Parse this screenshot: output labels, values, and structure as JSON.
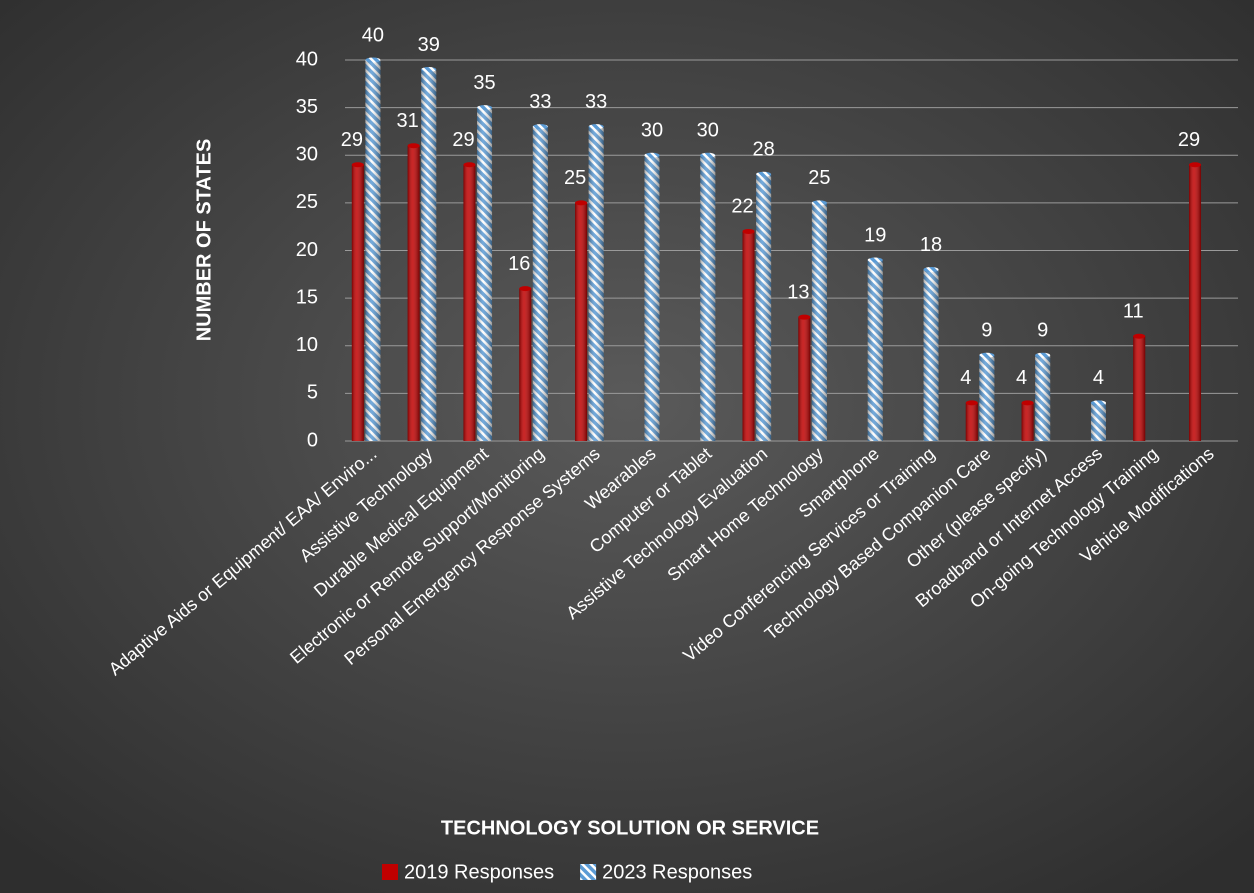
{
  "chart_data": {
    "type": "bar",
    "x_label": "TECHNOLOGY SOLUTION OR SERVICE",
    "y_label": "NUMBER OF STATES",
    "categories": [
      "Adaptive Aids or Equipment/ EAA/ Enviro...",
      "Assistive Technology",
      "Durable Medical Equipment",
      "Electronic or Remote Support/Monitoring",
      "Personal Emergency Response Systems",
      "Wearables",
      "Computer or Tablet",
      "Assistive Technology Evaluation",
      "Smart Home Technology",
      "Smartphone",
      "Video Conferencing Services or Training",
      "Technology Based Companion Care",
      "Other (please specify)",
      "Broadband or Internet Access",
      "On-going Technology Training",
      "Vehicle Modifications"
    ],
    "series": [
      {
        "name": "2019 Responses",
        "color": "#c00000",
        "values": [
          29,
          31,
          29,
          16,
          25,
          null,
          null,
          22,
          13,
          null,
          null,
          4,
          4,
          null,
          11,
          29
        ]
      },
      {
        "name": "2023 Responses",
        "color": "#5b9bd5",
        "values": [
          40,
          39,
          35,
          33,
          33,
          30,
          30,
          28,
          25,
          19,
          18,
          9,
          9,
          4,
          null,
          null
        ]
      }
    ],
    "ylim": [
      0,
      40
    ],
    "yticks": [
      0,
      5,
      10,
      15,
      20,
      25,
      30,
      35,
      40
    ],
    "grid": true,
    "legend": "bottom"
  }
}
